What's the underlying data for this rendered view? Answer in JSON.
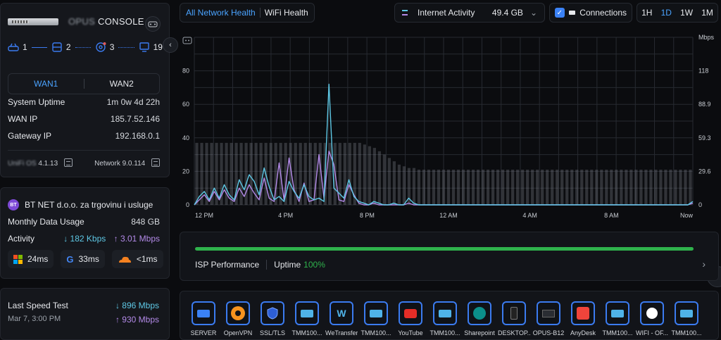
{
  "device": {
    "name_blurred": "OPUS",
    "name": "CONSOLE",
    "topology": {
      "wan": "1",
      "switches": "2",
      "aps": "3",
      "clients": "19"
    },
    "wan_tabs": [
      "WAN1",
      "WAN2"
    ],
    "active_wan": "WAN1",
    "stats": [
      {
        "label": "System Uptime",
        "value": "1m 0w 4d 22h"
      },
      {
        "label": "WAN IP",
        "value": "185.7.52.146"
      },
      {
        "label": "Gateway IP",
        "value": "192.168.0.1"
      }
    ],
    "os_version_blurred": "UniFi OS",
    "os_version": "4.1.13",
    "network_version": "Network 9.0.114"
  },
  "isp": {
    "badge": "BT",
    "name": "BT NET d.o.o. za trgovinu i usluge",
    "monthly_label": "Monthly Data Usage",
    "monthly_value": "848 GB",
    "activity_label": "Activity",
    "down": "182 Kbps",
    "up": "3.01 Mbps",
    "latency": [
      {
        "service": "windows",
        "value": "24ms"
      },
      {
        "service": "google",
        "value": "33ms"
      },
      {
        "service": "cloudflare",
        "value": "<1ms"
      }
    ]
  },
  "speedtest": {
    "title": "Last Speed Test",
    "date": "Mar 7, 3:00 PM",
    "down": "896 Mbps",
    "up": "930 Mbps"
  },
  "toolbar": {
    "tabs": [
      "All Network Health",
      "WiFi Health"
    ],
    "active_tab": "All Network Health",
    "metric": "Internet Activity",
    "metric_value": "49.4 GB",
    "connections_label": "Connections",
    "connections_checked": true,
    "ranges": [
      "1H",
      "1D",
      "1W",
      "1M"
    ],
    "active_range": "1D"
  },
  "colors": {
    "accent": "#4aa3ff",
    "download": "#5ec8e5",
    "upload": "#b38ae8",
    "uptime": "#2fb24c"
  },
  "chart_data": {
    "type": "line",
    "x_tick_labels": [
      "12 PM",
      "4 PM",
      "8 PM",
      "12 AM",
      "4 AM",
      "8 AM",
      "Now"
    ],
    "y_left_ticks": [
      0,
      20,
      40,
      60,
      80
    ],
    "y_right_ticks": [
      "0",
      "29.6",
      "59.3",
      "88.9",
      "118"
    ],
    "y_right_unit": "Mbps",
    "ylim": [
      0,
      100
    ],
    "grid": true,
    "series": [
      {
        "values": [
          0,
          5,
          8,
          3,
          10,
          4,
          12,
          6,
          3,
          15,
          9,
          18,
          14,
          6,
          22,
          11,
          3,
          5,
          2,
          14,
          8,
          4,
          12,
          5,
          3,
          4,
          2,
          72,
          10,
          7,
          4,
          15,
          5,
          2,
          1,
          0,
          2,
          1,
          0,
          0,
          1,
          0,
          0,
          4,
          1,
          0,
          0,
          0,
          0,
          0,
          0,
          0,
          0,
          0,
          0,
          0,
          0,
          0,
          0,
          0,
          0,
          0,
          0,
          0,
          0,
          0,
          0,
          0,
          0,
          0,
          0,
          0,
          0,
          0,
          0,
          0,
          0,
          0,
          0,
          0,
          0,
          0,
          0,
          0,
          0,
          0,
          0,
          0,
          0,
          0,
          0,
          0,
          0,
          0,
          0,
          0,
          0,
          0,
          0,
          0,
          2
        ]
      },
      {
        "values": [
          0,
          3,
          6,
          2,
          8,
          3,
          9,
          4,
          2,
          10,
          5,
          12,
          7,
          3,
          16,
          4,
          2,
          25,
          3,
          28,
          9,
          2,
          13,
          2,
          3,
          30,
          4,
          32,
          24,
          3,
          2,
          12,
          6,
          1,
          0,
          0,
          1,
          0,
          0,
          0,
          0,
          0,
          0,
          1,
          0,
          0,
          0,
          0,
          0,
          0,
          0,
          0,
          0,
          0,
          0,
          0,
          0,
          0,
          0,
          0,
          0,
          0,
          0,
          0,
          0,
          0,
          0,
          0,
          0,
          0,
          0,
          0,
          0,
          0,
          0,
          0,
          0,
          0,
          0,
          0,
          0,
          0,
          0,
          0,
          0,
          0,
          0,
          0,
          0,
          0,
          0,
          0,
          0,
          0,
          0,
          0,
          0,
          0,
          0,
          0,
          1
        ]
      }
    ],
    "connection_bars": [
      37,
      37,
      37,
      37,
      37,
      37,
      37,
      37,
      37,
      37,
      37,
      37,
      37,
      37,
      37,
      37,
      37,
      37,
      37,
      37,
      37,
      37,
      37,
      37,
      37,
      37,
      37,
      37,
      37,
      37,
      37,
      37,
      37,
      37,
      36,
      35,
      34,
      32,
      30,
      28,
      26,
      24,
      23,
      22,
      22,
      21,
      21,
      21,
      21,
      21,
      21,
      21,
      21,
      21,
      21,
      21,
      21,
      21,
      21,
      21,
      21,
      21,
      21,
      21,
      21,
      21,
      21,
      21,
      21,
      21,
      21,
      21,
      21,
      21,
      21,
      21,
      21,
      21,
      21,
      21,
      21,
      21,
      21,
      21,
      21,
      21,
      21,
      21,
      21,
      21,
      21,
      21,
      21,
      21,
      21,
      21,
      21,
      21,
      21,
      21,
      21
    ]
  },
  "performance": {
    "title": "ISP Performance",
    "uptime_label": "Uptime",
    "uptime_value": "100%",
    "uptime_fraction": 1.0
  },
  "apps": [
    {
      "label": "SERVER",
      "icon": "server-icon"
    },
    {
      "label": "OpenVPN",
      "icon": "openvpn-icon"
    },
    {
      "label": "SSL/TLS",
      "icon": "shield-icon"
    },
    {
      "label": "TMM100...",
      "icon": "monitor-icon"
    },
    {
      "label": "WeTransfer",
      "icon": "wetransfer-icon"
    },
    {
      "label": "TMM100...",
      "icon": "monitor-icon"
    },
    {
      "label": "YouTube",
      "icon": "youtube-icon"
    },
    {
      "label": "TMM100...",
      "icon": "monitor-icon"
    },
    {
      "label": "Sharepoint",
      "icon": "sharepoint-icon"
    },
    {
      "label": "DESKTOP...",
      "icon": "phone-icon"
    },
    {
      "label": "OPUS-B12",
      "icon": "laptop-icon"
    },
    {
      "label": "AnyDesk",
      "icon": "anydesk-icon"
    },
    {
      "label": "TMM100...",
      "icon": "monitor-icon"
    },
    {
      "label": "WIFI - OF...",
      "icon": "circle-icon"
    },
    {
      "label": "TMM100...",
      "icon": "monitor-icon"
    }
  ]
}
